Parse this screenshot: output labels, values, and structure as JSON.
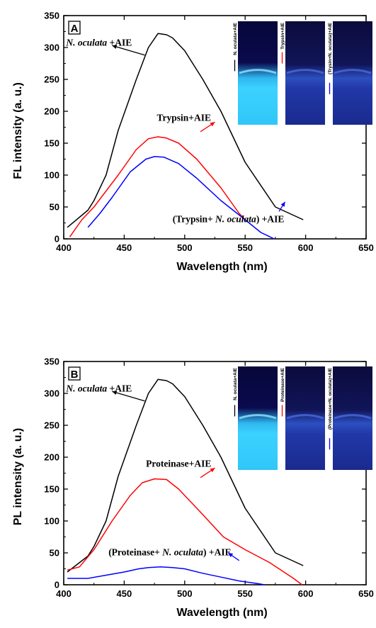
{
  "chart_data": [
    {
      "type": "line",
      "panel": "A",
      "xlabel": "Wavelength (nm)",
      "ylabel": "FL intensity (a. u.)",
      "xlim": [
        400,
        650
      ],
      "ylim": [
        0,
        350
      ],
      "x_ticks": [
        "400",
        "450",
        "500",
        "550",
        "600",
        "650"
      ],
      "y_ticks": [
        "0",
        "50",
        "100",
        "150",
        "200",
        "250",
        "300",
        "350"
      ],
      "grid": false,
      "colors": {
        "black": "#000000",
        "red": "#ff0000",
        "blue": "#0000ff"
      },
      "series": [
        {
          "color": "#000000",
          "points": [
            [
              403,
              18
            ],
            [
              420,
              45
            ],
            [
              425,
              60
            ],
            [
              435,
              100
            ],
            [
              445,
              170
            ],
            [
              460,
              250
            ],
            [
              470,
              300
            ],
            [
              478,
              322
            ],
            [
              485,
              320
            ],
            [
              490,
              315
            ],
            [
              500,
              295
            ],
            [
              515,
              250
            ],
            [
              530,
              200
            ],
            [
              550,
              120
            ],
            [
              575,
              50
            ],
            [
              598,
              30
            ]
          ]
        },
        {
          "color": "#ff0000",
          "points": [
            [
              405,
              3
            ],
            [
              415,
              30
            ],
            [
              425,
              50
            ],
            [
              445,
              100
            ],
            [
              460,
              140
            ],
            [
              470,
              157
            ],
            [
              478,
              160
            ],
            [
              485,
              158
            ],
            [
              495,
              150
            ],
            [
              510,
              125
            ],
            [
              530,
              80
            ],
            [
              545,
              40
            ],
            [
              550,
              30
            ]
          ]
        },
        {
          "color": "#0000ff",
          "points": [
            [
              420,
              18
            ],
            [
              430,
              40
            ],
            [
              440,
              65
            ],
            [
              455,
              105
            ],
            [
              468,
              125
            ],
            [
              475,
              129
            ],
            [
              483,
              128
            ],
            [
              495,
              118
            ],
            [
              510,
              95
            ],
            [
              530,
              60
            ],
            [
              550,
              30
            ],
            [
              563,
              10
            ],
            [
              574,
              0
            ]
          ]
        }
      ],
      "annotations": [
        {
          "italic": "N. oculata",
          "rest": " +AIE",
          "color": "#000000",
          "x": 402,
          "y": 303,
          "arrow_from": [
            467,
            288
          ],
          "arrow_to": [
            440,
            303
          ]
        },
        {
          "italic": "",
          "rest": "Trypsin+AIE",
          "color": "#ff0000",
          "text_color": "#000000",
          "x": 477,
          "y": 185,
          "arrow_from": [
            513,
            168
          ],
          "arrow_to": [
            525,
            183
          ]
        },
        {
          "prefix": "(Trypsin+ ",
          "italic": "N. oculata",
          "rest": ") +AIE",
          "color": "#0000ff",
          "text_color": "#000000",
          "x": 490,
          "y": 26,
          "arrow_from": [
            578,
            43
          ],
          "arrow_to": [
            583,
            58
          ]
        }
      ],
      "inset_legend": [
        {
          "label": "N. oculata+AIE",
          "color": "#000000",
          "glow": "bright"
        },
        {
          "label": "Trypsin+AIE",
          "color": "#ff0000",
          "glow": "dim"
        },
        {
          "label": "(Trysin+N. oculata)+AIE",
          "color": "#0000ff",
          "glow": "dim"
        }
      ]
    },
    {
      "type": "line",
      "panel": "B",
      "xlabel": "Wavelength (nm)",
      "ylabel": "PL intensity (a. u.)",
      "xlim": [
        400,
        650
      ],
      "ylim": [
        0,
        350
      ],
      "x_ticks": [
        "400",
        "450",
        "500",
        "550",
        "600",
        "650"
      ],
      "y_ticks": [
        "0",
        "50",
        "100",
        "150",
        "200",
        "250",
        "300",
        "350"
      ],
      "grid": false,
      "colors": {
        "black": "#000000",
        "red": "#ff0000",
        "blue": "#0000ff"
      },
      "series": [
        {
          "color": "#000000",
          "points": [
            [
              403,
              20
            ],
            [
              420,
              45
            ],
            [
              425,
              60
            ],
            [
              435,
              100
            ],
            [
              445,
              170
            ],
            [
              460,
              250
            ],
            [
              470,
              300
            ],
            [
              478,
              322
            ],
            [
              485,
              320
            ],
            [
              490,
              315
            ],
            [
              500,
              295
            ],
            [
              515,
              250
            ],
            [
              530,
              200
            ],
            [
              550,
              120
            ],
            [
              575,
              50
            ],
            [
              598,
              30
            ]
          ]
        },
        {
          "color": "#ff0000",
          "points": [
            [
              403,
              23
            ],
            [
              413,
              28
            ],
            [
              425,
              55
            ],
            [
              440,
              100
            ],
            [
              455,
              140
            ],
            [
              465,
              160
            ],
            [
              475,
              166
            ],
            [
              485,
              165
            ],
            [
              495,
              150
            ],
            [
              515,
              110
            ],
            [
              532,
              75
            ],
            [
              550,
              55
            ],
            [
              570,
              35
            ],
            [
              590,
              10
            ],
            [
              597,
              0
            ]
          ]
        },
        {
          "color": "#0000ff",
          "points": [
            [
              403,
              10
            ],
            [
              420,
              10
            ],
            [
              435,
              15
            ],
            [
              450,
              20
            ],
            [
              462,
              25
            ],
            [
              470,
              27
            ],
            [
              480,
              28
            ],
            [
              490,
              27
            ],
            [
              500,
              25
            ],
            [
              515,
              18
            ],
            [
              530,
              12
            ],
            [
              545,
              6
            ],
            [
              560,
              2
            ],
            [
              566,
              0
            ]
          ]
        }
      ],
      "annotations": [
        {
          "italic": "N. oculata",
          "rest": " +AIE",
          "color": "#000000",
          "x": 402,
          "y": 303,
          "arrow_from": [
            467,
            288
          ],
          "arrow_to": [
            440,
            303
          ]
        },
        {
          "italic": "",
          "rest": "Proteinase+AIE",
          "color": "#ff0000",
          "text_color": "#000000",
          "x": 468,
          "y": 185,
          "arrow_from": [
            513,
            168
          ],
          "arrow_to": [
            525,
            183
          ]
        },
        {
          "prefix": "(Proteinase+ ",
          "italic": "N. oculata",
          "rest": ") +AIE",
          "color": "#0000ff",
          "text_color": "#000000",
          "x": 437,
          "y": 46,
          "arrow_from": [
            545,
            38
          ],
          "arrow_to": [
            536,
            50
          ]
        }
      ],
      "inset_legend": [
        {
          "label": "N. oculata+AIE",
          "color": "#000000",
          "glow": "bright"
        },
        {
          "label": "Proteinase+AIE",
          "color": "#ff0000",
          "glow": "dim"
        },
        {
          "label": "(Proteinase+N. oculata)+AIE",
          "color": "#0000ff",
          "glow": "dim"
        }
      ]
    }
  ]
}
